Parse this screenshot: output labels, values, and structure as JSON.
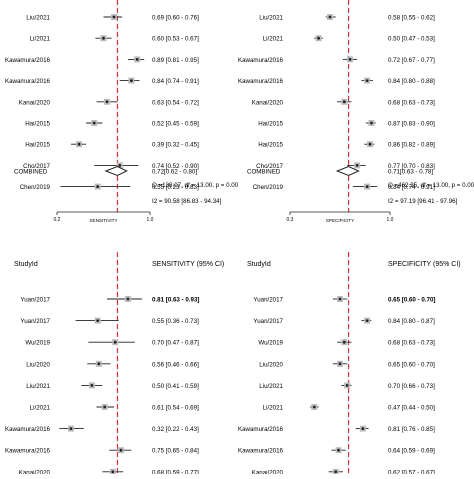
{
  "chart_data": [
    {
      "type": "forest",
      "metric_label": "SENSITIVITY",
      "header_study": "",
      "header_ci": "",
      "xlim": [
        0.2,
        1.0
      ],
      "ticks": [
        "0.2",
        "1.0"
      ],
      "pooled_line": 0.72,
      "x": [
        "Liu/2021",
        "Li/2021",
        "Kawamura/2016",
        "Kawamura/2016",
        "Kanai/2020",
        "Hai/2015",
        "Hai/2015",
        "Cho/2017",
        "Chen/2019"
      ],
      "est": [
        0.69,
        0.6,
        0.89,
        0.84,
        0.63,
        0.52,
        0.39,
        0.74,
        0.55
      ],
      "lo": [
        0.6,
        0.53,
        0.81,
        0.74,
        0.54,
        0.45,
        0.32,
        0.52,
        0.23
      ],
      "hi": [
        0.76,
        0.67,
        0.95,
        0.91,
        0.72,
        0.59,
        0.45,
        0.9,
        0.83
      ],
      "ci_text": [
        "0.69 [0.60 - 0.76]",
        "0.60 [0.53 - 0.67]",
        "0.89 [0.81 - 0.95]",
        "0.84 [0.74 - 0.91]",
        "0.63 [0.54 - 0.72]",
        "0.52 [0.45 - 0.59]",
        "0.39 [0.32 - 0.45]",
        "0.74 [0.52 - 0.90]",
        "0.55 [0.23 - 0.83]"
      ],
      "combined": {
        "label": "COMBINED",
        "est": 0.72,
        "lo": 0.62,
        "hi": 0.8,
        "ci_text": "0.72[0.62 - 0.80]"
      },
      "q_text": "Q =138.07, df = 13.00, p = 0.00",
      "i2_text": "I2 = 90.58 [86.83 - 94.34]"
    },
    {
      "type": "forest",
      "metric_label": "SPECIFICITY",
      "header_study": "",
      "header_ci": "",
      "xlim": [
        0.3,
        1.0
      ],
      "ticks": [
        "0.3",
        "1.0"
      ],
      "pooled_line": 0.71,
      "x": [
        "Liu/2021",
        "Li/2021",
        "Kawamura/2016",
        "Kawamura/2016",
        "Kanai/2020",
        "Hai/2015",
        "Hai/2015",
        "Cho/2017",
        "Chen/2019"
      ],
      "est": [
        0.58,
        0.5,
        0.72,
        0.84,
        0.68,
        0.87,
        0.86,
        0.77,
        0.84
      ],
      "lo": [
        0.55,
        0.47,
        0.67,
        0.8,
        0.63,
        0.83,
        0.82,
        0.7,
        0.74
      ],
      "hi": [
        0.62,
        0.53,
        0.77,
        0.88,
        0.73,
        0.9,
        0.89,
        0.83,
        0.91
      ],
      "ci_text": [
        "0.58 [0.55 - 0.62]",
        "0.50 [0.47 - 0.53]",
        "0.72 [0.67 - 0.77]",
        "0.84 [0.80 - 0.88]",
        "0.68 [0.63 - 0.73]",
        "0.87 [0.83 - 0.90]",
        "0.86 [0.82 - 0.89]",
        "0.77 [0.70 - 0.83]",
        "0.84 [0.74 - 0.91]"
      ],
      "combined": {
        "label": "COMBINED",
        "est": 0.71,
        "lo": 0.63,
        "hi": 0.78,
        "ci_text": "0.71[0.63 - 0.78]"
      },
      "q_text": "Q =462.35, df = 13.00, p = 0.00",
      "i2_text": "I2 = 97.19 [96.41 - 97.96]"
    },
    {
      "type": "forest",
      "metric_label": "",
      "header_study": "StudyId",
      "header_ci": "SENSITIVITY (95% CI)",
      "xlim": [
        0.2,
        1.0
      ],
      "ticks": [],
      "pooled_line": 0.72,
      "x": [
        "Yuan/2017",
        "Yuan/2017",
        "Wu/2019",
        "Liu/2020",
        "Liu/2021",
        "Li/2021",
        "Kawamura/2016",
        "Kawamura/2016",
        "Kanai/2020"
      ],
      "est": [
        0.81,
        0.55,
        0.7,
        0.56,
        0.5,
        0.61,
        0.32,
        0.75,
        0.68
      ],
      "lo": [
        0.63,
        0.36,
        0.47,
        0.46,
        0.41,
        0.54,
        0.22,
        0.65,
        0.59
      ],
      "hi": [
        0.93,
        0.73,
        0.87,
        0.66,
        0.59,
        0.69,
        0.43,
        0.84,
        0.77
      ],
      "ci_text": [
        "0.81 [0.63 - 0.93]",
        "0.55 [0.36 - 0.73]",
        "0.70 [0.47 - 0.87]",
        "0.56 [0.46 - 0.66]",
        "0.50 [0.41 - 0.59]",
        "0.61 [0.54 - 0.69]",
        "0.32 [0.22 - 0.43]",
        "0.75 [0.65 - 0.84]",
        "0.68 [0.59 - 0.77]"
      ]
    },
    {
      "type": "forest",
      "metric_label": "",
      "header_study": "StudyId",
      "header_ci": "SPECIFICITY (95% CI)",
      "xlim": [
        0.3,
        1.0
      ],
      "ticks": [],
      "pooled_line": 0.71,
      "x": [
        "Yuan/2017",
        "Yuan/2017",
        "Wu/2019",
        "Liu/2020",
        "Liu/2021",
        "Li/2021",
        "Kawamura/2016",
        "Kawamura/2016",
        "Kanai/2020"
      ],
      "est": [
        0.65,
        0.84,
        0.68,
        0.65,
        0.7,
        0.47,
        0.81,
        0.64,
        0.62
      ],
      "lo": [
        0.6,
        0.8,
        0.63,
        0.6,
        0.66,
        0.44,
        0.76,
        0.59,
        0.57
      ],
      "hi": [
        0.7,
        0.87,
        0.73,
        0.7,
        0.73,
        0.5,
        0.85,
        0.69,
        0.67
      ],
      "ci_text": [
        "0.65 [0.60 - 0.70]",
        "0.84 [0.80 - 0.87]",
        "0.68 [0.63 - 0.73]",
        "0.65 [0.60 - 0.70]",
        "0.70 [0.66 - 0.73]",
        "0.47 [0.44 - 0.50]",
        "0.81 [0.76 - 0.85]",
        "0.64 [0.59 - 0.69]",
        "0.62 [0.57 - 0.67]"
      ]
    }
  ],
  "colors": {
    "ref_line": "#d6323a",
    "ink": "#222222",
    "marker_fill": "#bbbbbb"
  }
}
